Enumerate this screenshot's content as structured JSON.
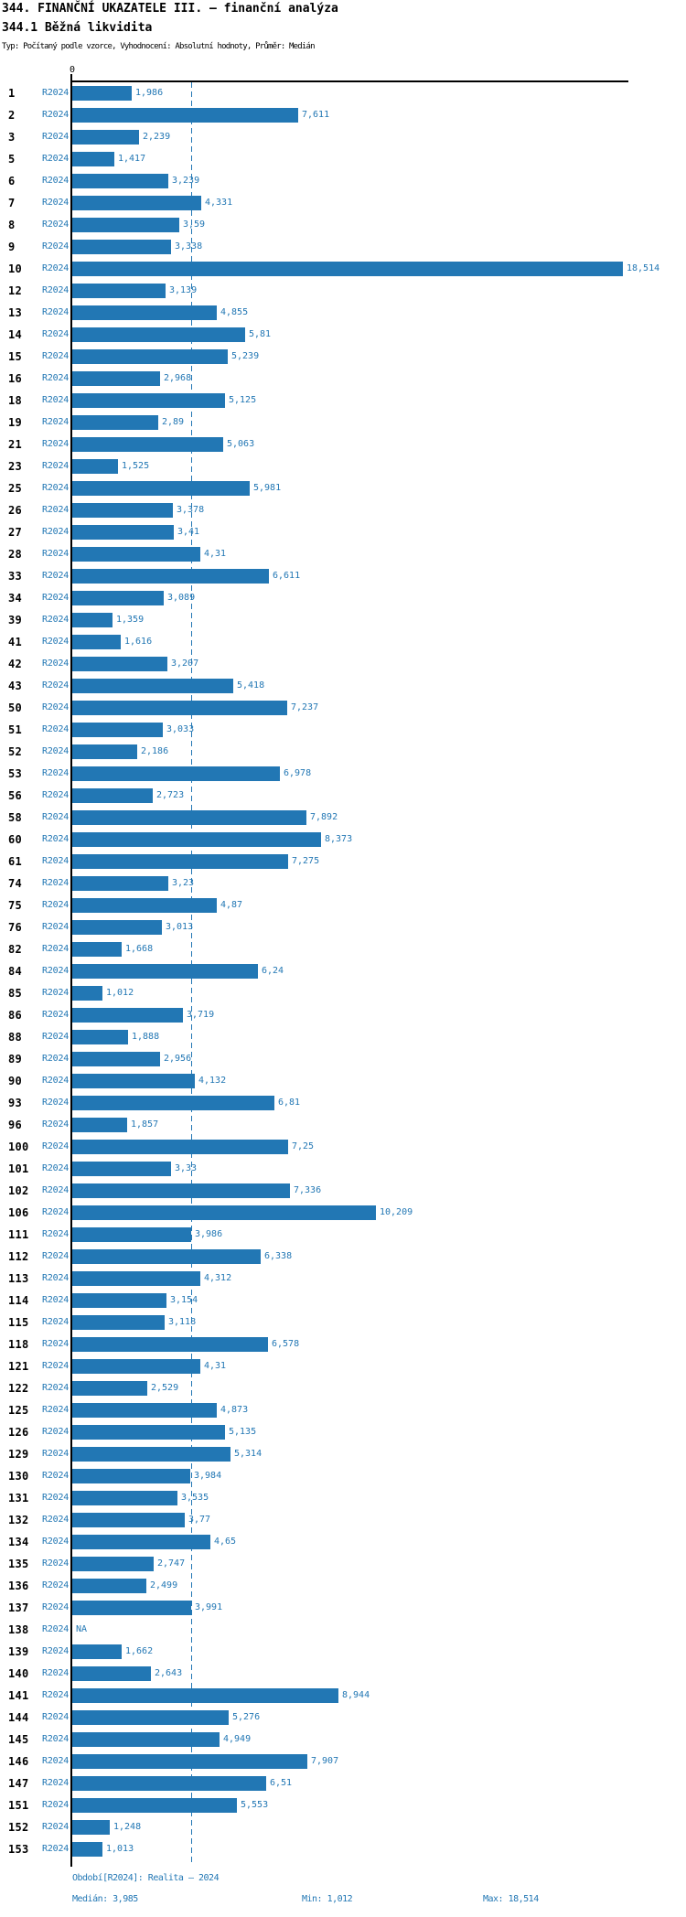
{
  "header": {
    "title": "344. FINANČNÍ UKAZATELE III. – finanční analýza",
    "subtitle": "344.1 Běžná likvidita",
    "meta": "Typ: Počítaný podle vzorce, Vyhodnocení: Absolutní hodnoty, Průměr: Medián"
  },
  "colors": {
    "bar": "#2277b4",
    "accent_text": "#2277b4",
    "axis": "#000000"
  },
  "chart_data": {
    "type": "bar",
    "orientation": "horizontal",
    "title": "344.1 Běžná likvidita",
    "series_label": "R2024",
    "axis_zero_label": "0",
    "xlim": [
      0,
      18.514
    ],
    "grid": false,
    "median": 3.985,
    "min": 1.012,
    "max": 18.514,
    "decimal_separator": ",",
    "rows": [
      {
        "id": "1",
        "value": 1.986,
        "value_label": "1,986"
      },
      {
        "id": "2",
        "value": 7.611,
        "value_label": "7,611"
      },
      {
        "id": "3",
        "value": 2.239,
        "value_label": "2,239"
      },
      {
        "id": "5",
        "value": 1.417,
        "value_label": "1,417"
      },
      {
        "id": "6",
        "value": 3.239,
        "value_label": "3,239"
      },
      {
        "id": "7",
        "value": 4.331,
        "value_label": "4,331"
      },
      {
        "id": "8",
        "value": 3.59,
        "value_label": "3,59"
      },
      {
        "id": "9",
        "value": 3.338,
        "value_label": "3,338"
      },
      {
        "id": "10",
        "value": 18.514,
        "value_label": "18,514"
      },
      {
        "id": "12",
        "value": 3.139,
        "value_label": "3,139"
      },
      {
        "id": "13",
        "value": 4.855,
        "value_label": "4,855"
      },
      {
        "id": "14",
        "value": 5.81,
        "value_label": "5,81"
      },
      {
        "id": "15",
        "value": 5.239,
        "value_label": "5,239"
      },
      {
        "id": "16",
        "value": 2.968,
        "value_label": "2,968"
      },
      {
        "id": "18",
        "value": 5.125,
        "value_label": "5,125"
      },
      {
        "id": "19",
        "value": 2.89,
        "value_label": "2,89"
      },
      {
        "id": "21",
        "value": 5.063,
        "value_label": "5,063"
      },
      {
        "id": "23",
        "value": 1.525,
        "value_label": "1,525"
      },
      {
        "id": "25",
        "value": 5.981,
        "value_label": "5,981"
      },
      {
        "id": "26",
        "value": 3.378,
        "value_label": "3,378"
      },
      {
        "id": "27",
        "value": 3.41,
        "value_label": "3,41"
      },
      {
        "id": "28",
        "value": 4.31,
        "value_label": "4,31"
      },
      {
        "id": "33",
        "value": 6.611,
        "value_label": "6,611"
      },
      {
        "id": "34",
        "value": 3.089,
        "value_label": "3,089"
      },
      {
        "id": "39",
        "value": 1.359,
        "value_label": "1,359"
      },
      {
        "id": "41",
        "value": 1.616,
        "value_label": "1,616"
      },
      {
        "id": "42",
        "value": 3.207,
        "value_label": "3,207"
      },
      {
        "id": "43",
        "value": 5.418,
        "value_label": "5,418"
      },
      {
        "id": "50",
        "value": 7.237,
        "value_label": "7,237"
      },
      {
        "id": "51",
        "value": 3.033,
        "value_label": "3,033"
      },
      {
        "id": "52",
        "value": 2.186,
        "value_label": "2,186"
      },
      {
        "id": "53",
        "value": 6.978,
        "value_label": "6,978"
      },
      {
        "id": "56",
        "value": 2.723,
        "value_label": "2,723"
      },
      {
        "id": "58",
        "value": 7.892,
        "value_label": "7,892"
      },
      {
        "id": "60",
        "value": 8.373,
        "value_label": "8,373"
      },
      {
        "id": "61",
        "value": 7.275,
        "value_label": "7,275"
      },
      {
        "id": "74",
        "value": 3.23,
        "value_label": "3,23"
      },
      {
        "id": "75",
        "value": 4.87,
        "value_label": "4,87"
      },
      {
        "id": "76",
        "value": 3.013,
        "value_label": "3,013"
      },
      {
        "id": "82",
        "value": 1.668,
        "value_label": "1,668"
      },
      {
        "id": "84",
        "value": 6.24,
        "value_label": "6,24"
      },
      {
        "id": "85",
        "value": 1.012,
        "value_label": "1,012"
      },
      {
        "id": "86",
        "value": 3.719,
        "value_label": "3,719"
      },
      {
        "id": "88",
        "value": 1.888,
        "value_label": "1,888"
      },
      {
        "id": "89",
        "value": 2.956,
        "value_label": "2,956"
      },
      {
        "id": "90",
        "value": 4.132,
        "value_label": "4,132"
      },
      {
        "id": "93",
        "value": 6.81,
        "value_label": "6,81"
      },
      {
        "id": "96",
        "value": 1.857,
        "value_label": "1,857"
      },
      {
        "id": "100",
        "value": 7.25,
        "value_label": "7,25"
      },
      {
        "id": "101",
        "value": 3.33,
        "value_label": "3,33"
      },
      {
        "id": "102",
        "value": 7.336,
        "value_label": "7,336"
      },
      {
        "id": "106",
        "value": 10.209,
        "value_label": "10,209"
      },
      {
        "id": "111",
        "value": 3.986,
        "value_label": "3,986"
      },
      {
        "id": "112",
        "value": 6.338,
        "value_label": "6,338"
      },
      {
        "id": "113",
        "value": 4.312,
        "value_label": "4,312"
      },
      {
        "id": "114",
        "value": 3.154,
        "value_label": "3,154"
      },
      {
        "id": "115",
        "value": 3.118,
        "value_label": "3,118"
      },
      {
        "id": "118",
        "value": 6.578,
        "value_label": "6,578"
      },
      {
        "id": "121",
        "value": 4.31,
        "value_label": "4,31"
      },
      {
        "id": "122",
        "value": 2.529,
        "value_label": "2,529"
      },
      {
        "id": "125",
        "value": 4.873,
        "value_label": "4,873"
      },
      {
        "id": "126",
        "value": 5.135,
        "value_label": "5,135"
      },
      {
        "id": "129",
        "value": 5.314,
        "value_label": "5,314"
      },
      {
        "id": "130",
        "value": 3.984,
        "value_label": "3,984"
      },
      {
        "id": "131",
        "value": 3.535,
        "value_label": "3,535"
      },
      {
        "id": "132",
        "value": 3.77,
        "value_label": "3,77"
      },
      {
        "id": "134",
        "value": 4.65,
        "value_label": "4,65"
      },
      {
        "id": "135",
        "value": 2.747,
        "value_label": "2,747"
      },
      {
        "id": "136",
        "value": 2.499,
        "value_label": "2,499"
      },
      {
        "id": "137",
        "value": 3.991,
        "value_label": "3,991"
      },
      {
        "id": "138",
        "value": null,
        "value_label": "NA"
      },
      {
        "id": "139",
        "value": 1.662,
        "value_label": "1,662"
      },
      {
        "id": "140",
        "value": 2.643,
        "value_label": "2,643"
      },
      {
        "id": "141",
        "value": 8.944,
        "value_label": "8,944"
      },
      {
        "id": "144",
        "value": 5.276,
        "value_label": "5,276"
      },
      {
        "id": "145",
        "value": 4.949,
        "value_label": "4,949"
      },
      {
        "id": "146",
        "value": 7.907,
        "value_label": "7,907"
      },
      {
        "id": "147",
        "value": 6.51,
        "value_label": "6,51"
      },
      {
        "id": "151",
        "value": 5.553,
        "value_label": "5,553"
      },
      {
        "id": "152",
        "value": 1.248,
        "value_label": "1,248"
      },
      {
        "id": "153",
        "value": 1.013,
        "value_label": "1,013"
      }
    ]
  },
  "footer": {
    "period": "Období[R2024]: Realita – 2024",
    "median_label": "Medián: 3,985",
    "min_label": "Min: 1,012",
    "max_label": "Max: 18,514"
  }
}
